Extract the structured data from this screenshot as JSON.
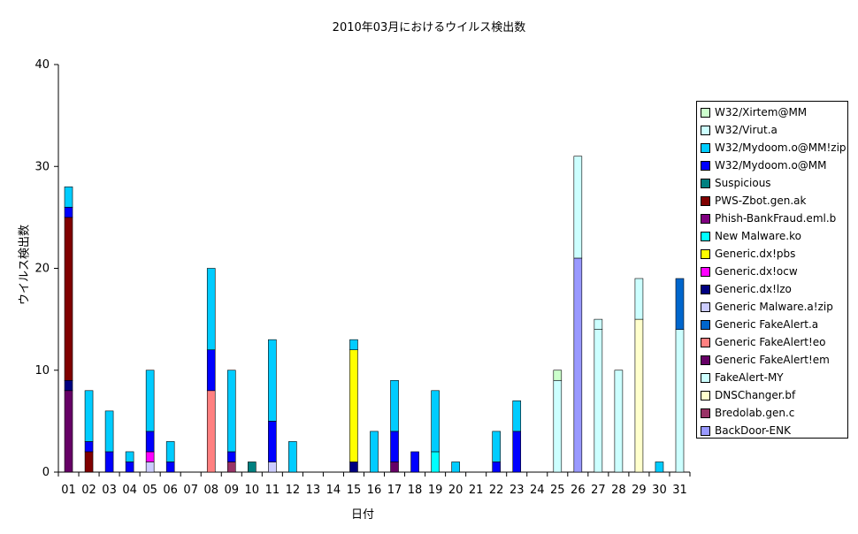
{
  "chart_data": {
    "type": "bar",
    "stacked": true,
    "title": "2010年03月におけるウイルス検出数",
    "xlabel": "日付",
    "ylabel": "ウイルス検出数",
    "ylim": [
      0,
      40
    ],
    "yticks": [
      "0",
      "10",
      "20",
      "30",
      "40"
    ],
    "grid": false,
    "legend_position": "right",
    "categories": [
      "01",
      "02",
      "03",
      "04",
      "05",
      "06",
      "07",
      "08",
      "09",
      "10",
      "11",
      "12",
      "13",
      "14",
      "15",
      "16",
      "17",
      "18",
      "19",
      "20",
      "21",
      "22",
      "23",
      "24",
      "25",
      "26",
      "27",
      "28",
      "29",
      "30",
      "31"
    ],
    "series": [
      {
        "name": "BackDoor-ENK",
        "color": "#9999ff",
        "values": [
          0,
          0,
          0,
          0,
          0,
          0,
          0,
          0,
          0,
          0,
          0,
          0,
          0,
          0,
          0,
          0,
          0,
          0,
          0,
          0,
          0,
          0,
          0,
          0,
          0,
          21,
          0,
          0,
          0,
          0,
          0
        ]
      },
      {
        "name": "Bredolab.gen.c",
        "color": "#993366",
        "values": [
          0,
          0,
          0,
          0,
          0,
          0,
          0,
          0,
          1,
          0,
          0,
          0,
          0,
          0,
          0,
          0,
          0,
          0,
          0,
          0,
          0,
          0,
          0,
          0,
          0,
          0,
          0,
          0,
          0,
          0,
          0
        ]
      },
      {
        "name": "DNSChanger.bf",
        "color": "#ffffcc",
        "values": [
          0,
          0,
          0,
          0,
          0,
          0,
          0,
          0,
          0,
          0,
          0,
          0,
          0,
          0,
          0,
          0,
          0,
          0,
          0,
          0,
          0,
          0,
          0,
          0,
          0,
          0,
          0,
          0,
          15,
          0,
          0
        ]
      },
      {
        "name": "FakeAlert-MY",
        "color": "#ccffff",
        "values": [
          0,
          0,
          0,
          0,
          0,
          0,
          0,
          0,
          0,
          0,
          0,
          0,
          0,
          0,
          0,
          0,
          0,
          0,
          0,
          0,
          0,
          0,
          0,
          0,
          9,
          10,
          14,
          10,
          4,
          0,
          14
        ]
      },
      {
        "name": "Generic FakeAlert!em",
        "color": "#660066",
        "values": [
          8,
          0,
          0,
          0,
          0,
          0,
          0,
          0,
          0,
          0,
          0,
          0,
          0,
          0,
          0,
          0,
          1,
          0,
          0,
          0,
          0,
          0,
          0,
          0,
          0,
          0,
          0,
          0,
          0,
          0,
          0
        ]
      },
      {
        "name": "Generic FakeAlert!eo",
        "color": "#ff8080",
        "values": [
          0,
          0,
          0,
          0,
          0,
          0,
          0,
          8,
          0,
          0,
          0,
          0,
          0,
          0,
          0,
          0,
          0,
          0,
          0,
          0,
          0,
          0,
          0,
          0,
          0,
          0,
          0,
          0,
          0,
          0,
          0
        ]
      },
      {
        "name": "Generic FakeAlert.a",
        "color": "#0066cc",
        "values": [
          0,
          0,
          0,
          0,
          0,
          0,
          0,
          0,
          0,
          0,
          0,
          0,
          0,
          0,
          0,
          0,
          0,
          0,
          0,
          0,
          0,
          0,
          0,
          0,
          0,
          0,
          0,
          0,
          0,
          0,
          5
        ]
      },
      {
        "name": "Generic Malware.a!zip",
        "color": "#ccccff",
        "values": [
          0,
          0,
          0,
          0,
          1,
          0,
          0,
          0,
          0,
          0,
          1,
          0,
          0,
          0,
          0,
          0,
          0,
          0,
          0,
          0,
          0,
          0,
          0,
          0,
          0,
          0,
          0,
          0,
          0,
          0,
          0
        ]
      },
      {
        "name": "Generic.dx!lzo",
        "color": "#000080",
        "values": [
          1,
          0,
          0,
          0,
          0,
          0,
          0,
          0,
          0,
          0,
          0,
          0,
          0,
          0,
          1,
          0,
          0,
          0,
          0,
          0,
          0,
          0,
          0,
          0,
          0,
          0,
          0,
          0,
          0,
          0,
          0
        ]
      },
      {
        "name": "Generic.dx!ocw",
        "color": "#ff00ff",
        "values": [
          0,
          0,
          0,
          0,
          1,
          0,
          0,
          0,
          0,
          0,
          0,
          0,
          0,
          0,
          0,
          0,
          0,
          0,
          0,
          0,
          0,
          0,
          0,
          0,
          0,
          0,
          0,
          0,
          0,
          0,
          0
        ]
      },
      {
        "name": "Generic.dx!pbs",
        "color": "#ffff00",
        "values": [
          0,
          0,
          0,
          0,
          0,
          0,
          0,
          0,
          0,
          0,
          0,
          0,
          0,
          0,
          11,
          0,
          0,
          0,
          0,
          0,
          0,
          0,
          0,
          0,
          0,
          0,
          0,
          0,
          0,
          0,
          0
        ]
      },
      {
        "name": "New Malware.ko",
        "color": "#00ffff",
        "values": [
          0,
          0,
          0,
          0,
          0,
          0,
          0,
          0,
          0,
          0,
          0,
          0,
          0,
          0,
          0,
          0,
          0,
          0,
          2,
          0,
          0,
          0,
          0,
          0,
          0,
          0,
          0,
          0,
          0,
          0,
          0
        ]
      },
      {
        "name": "Phish-BankFraud.eml.b",
        "color": "#800080",
        "values": [
          0,
          0,
          0,
          0,
          0,
          0,
          0,
          0,
          0,
          0,
          0,
          0,
          0,
          0,
          0,
          0,
          0,
          0,
          0,
          0,
          0,
          0,
          0,
          0,
          0,
          0,
          0,
          0,
          0,
          0,
          0
        ]
      },
      {
        "name": "PWS-Zbot.gen.ak",
        "color": "#800000",
        "values": [
          16,
          2,
          0,
          0,
          0,
          0,
          0,
          0,
          0,
          0,
          0,
          0,
          0,
          0,
          0,
          0,
          0,
          0,
          0,
          0,
          0,
          0,
          0,
          0,
          0,
          0,
          0,
          0,
          0,
          0,
          0
        ]
      },
      {
        "name": "Suspicious",
        "color": "#008080",
        "values": [
          0,
          0,
          0,
          0,
          0,
          0,
          0,
          0,
          0,
          1,
          0,
          0,
          0,
          0,
          0,
          0,
          0,
          0,
          0,
          0,
          0,
          0,
          0,
          0,
          0,
          0,
          0,
          0,
          0,
          0,
          0
        ]
      },
      {
        "name": "W32/Mydoom.o@MM",
        "color": "#0000ff",
        "values": [
          1,
          1,
          2,
          1,
          2,
          1,
          0,
          4,
          1,
          0,
          4,
          0,
          0,
          0,
          0,
          0,
          3,
          2,
          0,
          0,
          0,
          1,
          4,
          0,
          0,
          0,
          0,
          0,
          0,
          0,
          0
        ]
      },
      {
        "name": "W32/Mydoom.o@MM!zip",
        "color": "#00ccff",
        "values": [
          2,
          5,
          4,
          1,
          6,
          2,
          0,
          8,
          8,
          0,
          8,
          3,
          0,
          0,
          1,
          4,
          5,
          0,
          6,
          1,
          0,
          3,
          3,
          0,
          0,
          0,
          0,
          0,
          0,
          1,
          0
        ]
      },
      {
        "name": "W32/Virut.a",
        "color": "#ccffff",
        "values": [
          0,
          0,
          0,
          0,
          0,
          0,
          0,
          0,
          0,
          0,
          0,
          0,
          0,
          0,
          0,
          0,
          0,
          0,
          0,
          0,
          0,
          0,
          0,
          0,
          0,
          0,
          1,
          0,
          0,
          0,
          0
        ]
      },
      {
        "name": "W32/Xirtem@MM",
        "color": "#ccffcc",
        "values": [
          0,
          0,
          0,
          0,
          0,
          0,
          0,
          0,
          0,
          0,
          0,
          0,
          0,
          0,
          0,
          0,
          0,
          0,
          0,
          0,
          0,
          0,
          0,
          0,
          1,
          0,
          0,
          0,
          0,
          0,
          0
        ]
      }
    ]
  }
}
